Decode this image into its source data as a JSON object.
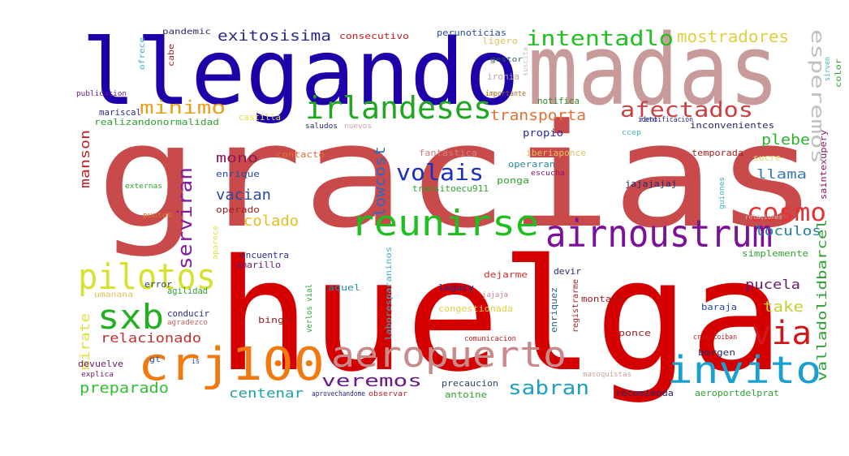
{
  "words": [
    {
      "text": "gracias",
      "color": "#c94a4a"
    },
    {
      "text": "huelga",
      "color": "#d40000"
    },
    {
      "text": "llegando",
      "color": "#1f00a8"
    },
    {
      "text": "madas",
      "color": "#c89a9a"
    },
    {
      "text": "airnoustrum",
      "color": "#7b109a"
    },
    {
      "text": "reunirse",
      "color": "#1fbf1f"
    },
    {
      "text": "irlandeses",
      "color": "#1fa81f"
    },
    {
      "text": "aeropuerto",
      "color": "#c88a8a"
    },
    {
      "text": "crj100",
      "color": "#f07a10"
    },
    {
      "text": "invito",
      "color": "#1aa0d0"
    },
    {
      "text": "pilotos",
      "color": "#d8e030"
    },
    {
      "text": "sxb",
      "color": "#20b020"
    },
    {
      "text": "via",
      "color": "#d01818"
    },
    {
      "text": "cosmo",
      "color": "#e83030"
    },
    {
      "text": "volais",
      "color": "#1a30c0"
    },
    {
      "text": "afectados",
      "color": "#c84040"
    },
    {
      "text": "intentadlo",
      "color": "#20c020"
    },
    {
      "text": "mostradores",
      "color": "#e0d040"
    },
    {
      "text": "minimo",
      "color": "#e8a020"
    },
    {
      "text": "exitosisima",
      "color": "#2a2a8a"
    },
    {
      "text": "esperemos",
      "color": "#c0c0c0"
    },
    {
      "text": "serviran",
      "color": "#8020a0"
    },
    {
      "text": "veremos",
      "color": "#6a1a8a"
    },
    {
      "text": "sabran",
      "color": "#20a0c0"
    },
    {
      "text": "relacionado",
      "color": "#c03030"
    },
    {
      "text": "preparado",
      "color": "#30c030"
    },
    {
      "text": "centenar",
      "color": "#20a0a0"
    },
    {
      "text": "colado",
      "color": "#e0c020"
    },
    {
      "text": "vacian",
      "color": "#2a4aa0"
    },
    {
      "text": "mono",
      "color": "#8a1a5a"
    },
    {
      "text": "lowcost",
      "color": "#2a6ac0"
    },
    {
      "text": "transporta",
      "color": "#e07030"
    },
    {
      "text": "llama",
      "color": "#3a7ab0"
    },
    {
      "text": "plebe",
      "color": "#30b030"
    },
    {
      "text": "loculos",
      "color": "#2080a0"
    },
    {
      "text": "pucela",
      "color": "#6a1a6a"
    },
    {
      "text": "take",
      "color": "#c0d030"
    },
    {
      "text": "valladolidbarcel",
      "color": "#30a030"
    },
    {
      "text": "manson",
      "color": "#c02020"
    },
    {
      "text": "mirate",
      "color": "#e0e040"
    },
    {
      "text": "mariscal",
      "color": "#2a2a8a"
    },
    {
      "text": "realizandonormalidad",
      "color": "#30a030"
    },
    {
      "text": "castilla",
      "color": "#e0e040"
    },
    {
      "text": "notifica",
      "color": "#2a8a2a"
    },
    {
      "text": "propio",
      "color": "#2a2a9a"
    },
    {
      "text": "inconvenientes",
      "color": "#2a2a6a"
    },
    {
      "text": "consecutivo",
      "color": "#c02020"
    },
    {
      "text": "perunoticias",
      "color": "#2a4aa0"
    },
    {
      "text": "ligero",
      "color": "#e0c060"
    },
    {
      "text": "pandemic",
      "color": "#2a2a6a"
    },
    {
      "text": "cabe",
      "color": "#a02020"
    },
    {
      "text": "ofrece",
      "color": "#40b0c0"
    },
    {
      "text": "publicacion",
      "color": "#6a1a8a"
    },
    {
      "text": "gestor",
      "color": "#2a6a4a"
    },
    {
      "text": "suscita",
      "color": "#c0c0c0"
    },
    {
      "text": "ironia",
      "color": "#c0a0a0"
    },
    {
      "text": "importante",
      "color": "#a06a1a"
    },
    {
      "text": "color",
      "color": "#30a030"
    },
    {
      "text": "sirven",
      "color": "#40b0c0"
    },
    {
      "text": "saintexupery",
      "color": "#8a1a6a"
    },
    {
      "text": "sucre",
      "color": "#e0e060"
    },
    {
      "text": "temporada",
      "color": "#a02020"
    },
    {
      "text": "iberiaponce",
      "color": "#e0c060"
    },
    {
      "text": "fantastica",
      "color": "#d08080"
    },
    {
      "text": "contacto",
      "color": "#e07030"
    },
    {
      "text": "enrique",
      "color": "#2a4aa0"
    },
    {
      "text": "operaran",
      "color": "#2a8aa0"
    },
    {
      "text": "ponga",
      "color": "#30a030"
    },
    {
      "text": "jajajajaj",
      "color": "#2a2a6a"
    },
    {
      "text": "transitoecu911",
      "color": "#30a030"
    },
    {
      "text": "externas",
      "color": "#30a030"
    },
    {
      "text": "operado",
      "color": "#a02020"
    },
    {
      "text": "encuentra",
      "color": "#2a2a8a"
    },
    {
      "text": "amarillo",
      "color": "#6a1a6a"
    },
    {
      "text": "puntos",
      "color": "#e07030"
    },
    {
      "text": "aparece",
      "color": "#e0e040"
    },
    {
      "text": "umanana",
      "color": "#e0c060"
    },
    {
      "text": "error",
      "color": "#2a4a6a"
    },
    {
      "text": "agilidad",
      "color": "#30a030"
    },
    {
      "text": "conducir",
      "color": "#2a2a8a"
    },
    {
      "text": "agradezco",
      "color": "#c06060"
    },
    {
      "text": "bingo",
      "color": "#a02020"
    },
    {
      "text": "verlos vial",
      "color": "#30a030"
    },
    {
      "text": "aquel",
      "color": "#2a8aa0"
    },
    {
      "text": "legacy",
      "color": "#2a2a8a"
    },
    {
      "text": "congestionada",
      "color": "#e0d040"
    },
    {
      "text": "laboresparaninos",
      "color": "#40b0c0"
    },
    {
      "text": "enriquez",
      "color": "#2a6a8a"
    },
    {
      "text": "registrarme",
      "color": "#a02020"
    },
    {
      "text": "dejarme",
      "color": "#d03030"
    },
    {
      "text": "devir",
      "color": "#2a2a6a"
    },
    {
      "text": "jajaja",
      "color": "#d080a0"
    },
    {
      "text": "montaje",
      "color": "#a02020"
    },
    {
      "text": "ponce",
      "color": "#a02020"
    },
    {
      "text": "baraja",
      "color": "#2a4aa0"
    },
    {
      "text": "simplemente",
      "color": "#30a030"
    },
    {
      "text": "borgen",
      "color": "#2a2a6a"
    },
    {
      "text": "criticoiban",
      "color": "#c02020"
    },
    {
      "text": "devuelve",
      "color": "#6a1a6a"
    },
    {
      "text": "explica",
      "color": "#6a1a6a"
    },
    {
      "text": "gt",
      "color": "#2a4aa0"
    },
    {
      "text": "is",
      "color": "#2a4aa0"
    },
    {
      "text": "precaucion",
      "color": "#2a4a6a"
    },
    {
      "text": "antoine",
      "color": "#30a030"
    },
    {
      "text": "recomienda",
      "color": "#2a2a6a"
    },
    {
      "text": "aeroportdelprat",
      "color": "#30a030"
    },
    {
      "text": "aprovechandome",
      "color": "#2a2a8a"
    },
    {
      "text": "observar",
      "color": "#c02020"
    },
    {
      "text": "masoquistas",
      "color": "#d0a0a0"
    },
    {
      "text": "comunicacion",
      "color": "#c02020"
    },
    {
      "text": "reto",
      "color": "#2a4aa0"
    },
    {
      "text": "identificacion",
      "color": "#2a2a8a"
    },
    {
      "text": "ccep",
      "color": "#40b0c0"
    },
    {
      "text": "escucha",
      "color": "#8a1a6a"
    },
    {
      "text": "saludos",
      "color": "#2a2a6a"
    },
    {
      "text": "nuevos",
      "color": "#d0a0a0"
    },
    {
      "text": "guiones",
      "color": "#40b0c0"
    },
    {
      "text": "relaciones",
      "color": "#c0c0c0"
    }
  ]
}
